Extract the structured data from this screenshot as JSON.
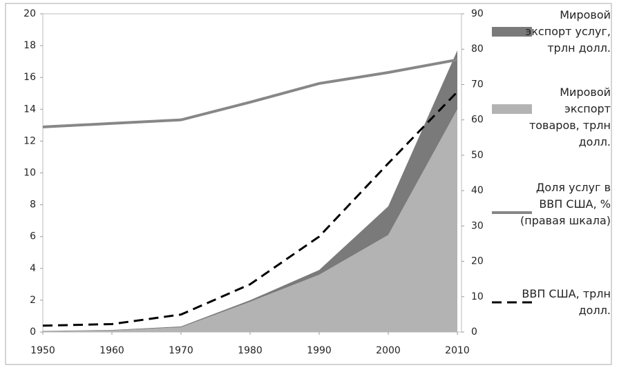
{
  "chart_data": {
    "type": "combo",
    "x": [
      1950,
      1960,
      1970,
      1980,
      1990,
      2000,
      2010
    ],
    "xlim": [
      1950,
      2010
    ],
    "xticks": [
      1950,
      1960,
      1970,
      1980,
      1990,
      2000,
      2010
    ],
    "ylim": [
      0,
      20
    ],
    "yticks": [
      0,
      2,
      4,
      6,
      8,
      10,
      12,
      14,
      16,
      18,
      20
    ],
    "y2lim": [
      0,
      90
    ],
    "y2ticks": [
      0,
      10,
      20,
      30,
      40,
      50,
      60,
      70,
      80,
      90
    ],
    "legend": "right",
    "series": [
      {
        "name": "Мировой экспорт товаров, трлн долл.",
        "type": "area",
        "color": "#b3b3b3",
        "values": [
          0.05,
          0.1,
          0.3,
          1.9,
          3.6,
          6.1,
          14.0
        ]
      },
      {
        "name": "Мировой экспорт услуг, трлн долл.",
        "type": "area",
        "color": "#7a7a7a",
        "values": [
          0.02,
          0.03,
          0.05,
          0.1,
          0.3,
          1.8,
          3.7
        ]
      },
      {
        "name": "Доля услуг в ВВП США, % (правая шкала)",
        "type": "line",
        "axis": "y2",
        "color": "#878787",
        "values": [
          58,
          59,
          60,
          65,
          70.3,
          73.4,
          77
        ]
      },
      {
        "name": "ВВП США, трлн долл.",
        "type": "line",
        "dash": true,
        "color": "#000000",
        "values": [
          0.4,
          0.5,
          1.1,
          3.0,
          6.0,
          10.6,
          15.1
        ]
      }
    ]
  }
}
